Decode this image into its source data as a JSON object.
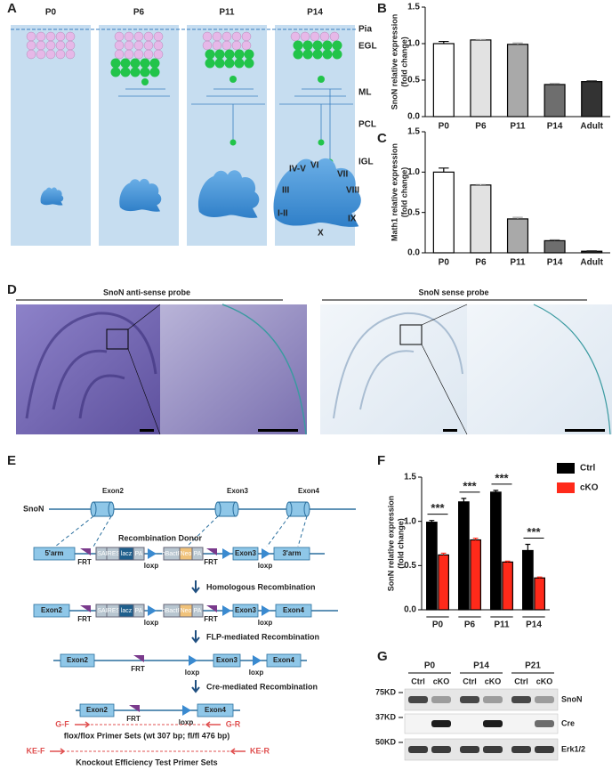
{
  "panel_labels": [
    "A",
    "B",
    "C",
    "D",
    "E",
    "F",
    "G"
  ],
  "panel_a": {
    "stages": [
      "P0",
      "P6",
      "P11",
      "P14"
    ],
    "layers": [
      "Pia",
      "EGL",
      "ML",
      "PCL",
      "IGL"
    ],
    "lobules": [
      "IV-V",
      "VI",
      "VII",
      "VIII",
      "III",
      "I-II",
      "X",
      "IX"
    ]
  },
  "chart_data": [
    {
      "type": "bar",
      "ylabel": [
        "SnoN relative expression",
        "(fold change)"
      ],
      "categories": [
        "P0",
        "P6",
        "P11",
        "P14",
        "Adult"
      ],
      "values": [
        1.0,
        1.05,
        0.99,
        0.44,
        0.48
      ],
      "errors": [
        0.03,
        0.01,
        0.02,
        0.01,
        0.01
      ],
      "colors": [
        "#ffffff",
        "#e2e2e2",
        "#a9a9a9",
        "#6e6e6e",
        "#333333"
      ],
      "ylim": [
        0,
        1.5
      ],
      "yticks": [
        {
          "value": 0,
          "label": "0.0"
        },
        0.5,
        {
          "value": 1,
          "label": "1.0"
        },
        1.5
      ]
    },
    {
      "type": "bar",
      "ylabel": [
        "Math1 relative expression",
        "(fold change)"
      ],
      "categories": [
        "P0",
        "P6",
        "P11",
        "P14",
        "Adult"
      ],
      "values": [
        1.0,
        0.84,
        0.42,
        0.15,
        0.02
      ],
      "errors": [
        0.05,
        0.01,
        0.02,
        0.01,
        0.005
      ],
      "colors": [
        "#ffffff",
        "#e2e2e2",
        "#a9a9a9",
        "#6e6e6e",
        "#333333"
      ],
      "ylim": [
        0,
        1.5
      ],
      "yticks": [
        {
          "value": 0,
          "label": "0.0"
        },
        0.5,
        {
          "value": 1,
          "label": "1.0"
        },
        1.5
      ]
    },
    {
      "type": "grouped_bar",
      "ylabel": [
        "SonN relative expression",
        "(fold change)"
      ],
      "categories": [
        "P0",
        "P6",
        "P11",
        "P14"
      ],
      "series": [
        {
          "name": "Ctrl",
          "color": "#000000",
          "values": [
            0.99,
            1.22,
            1.33,
            0.67
          ],
          "errors": [
            0.02,
            0.04,
            0.02,
            0.07
          ]
        },
        {
          "name": "cKO",
          "color": "#ff2a1a",
          "values": [
            0.62,
            0.79,
            0.54,
            0.36
          ],
          "errors": [
            0.02,
            0.02,
            0.01,
            0.01
          ]
        }
      ],
      "annotations": [
        "***",
        "***",
        "***",
        "***"
      ],
      "ylim": [
        0,
        1.5
      ],
      "yticks": [
        {
          "value": 0,
          "label": "0.0"
        },
        0.5,
        {
          "value": 1,
          "label": "1.0"
        },
        1.5
      ]
    }
  ],
  "panel_d": {
    "probes": [
      "SnoN anti-sense probe",
      "SnoN sense probe"
    ]
  },
  "panel_e": {
    "gene": "SnoN",
    "exons": [
      "Exon2",
      "Exon3",
      "Exon4"
    ],
    "donor": "Recombination Donor",
    "arms": [
      "5'arm",
      "3'arm"
    ],
    "cassette": [
      "SA",
      "IRES",
      "lacz",
      "PA",
      "hBactP",
      "Neo",
      "PA"
    ],
    "sites": [
      "FRT",
      "loxp"
    ],
    "steps": [
      "Homologous Recombination",
      "FLP-mediated Recombination",
      "Cre-mediated Recombination"
    ],
    "primers": {
      "genotype": [
        "G-F",
        "G-R"
      ],
      "genotype_label": "flox/flox Primer Sets (wt 307 bp; fl/fl 476 bp)",
      "ko": [
        "KE-F",
        "KE-R"
      ],
      "ko_label": "Knockout Efficiency Test Primer Sets"
    }
  },
  "panel_g": {
    "ages": [
      "P0",
      "P14",
      "P21"
    ],
    "lanes": [
      "Ctrl",
      "cKO"
    ],
    "markers": [
      "75KD",
      "37KD",
      "50KD"
    ],
    "proteins": [
      "SnoN",
      "Cre",
      "Erk1/2"
    ]
  }
}
